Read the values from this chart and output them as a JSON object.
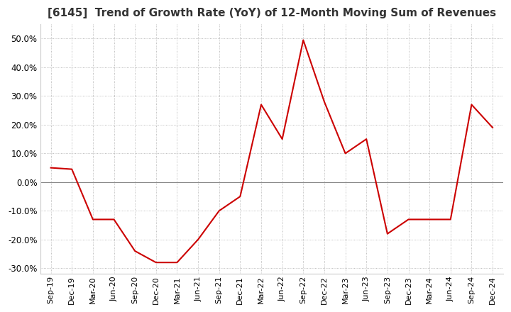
{
  "title": "[6145]  Trend of Growth Rate (YoY) of 12-Month Moving Sum of Revenues",
  "title_fontsize": 11,
  "line_color": "#cc0000",
  "background_color": "#ffffff",
  "grid_color": "#aaaaaa",
  "grid_style": "dotted",
  "ylim": [
    -32,
    55
  ],
  "yticks": [
    -30,
    -20,
    -10,
    0,
    10,
    20,
    30,
    40,
    50
  ],
  "x_labels": [
    "Sep-19",
    "Dec-19",
    "Mar-20",
    "Jun-20",
    "Sep-20",
    "Dec-20",
    "Mar-21",
    "Jun-21",
    "Sep-21",
    "Dec-21",
    "Mar-22",
    "Jun-22",
    "Sep-22",
    "Dec-22",
    "Mar-23",
    "Jun-23",
    "Sep-23",
    "Dec-23",
    "Mar-24",
    "Jun-24",
    "Sep-24",
    "Dec-24"
  ],
  "y_values": [
    5.0,
    4.5,
    -13.0,
    -13.0,
    -24.0,
    -28.0,
    -28.0,
    -20.0,
    -10.0,
    -5.0,
    27.0,
    15.0,
    49.5,
    28.0,
    10.0,
    15.0,
    -18.0,
    -13.0,
    -13.0,
    -13.0,
    27.0,
    19.0
  ]
}
